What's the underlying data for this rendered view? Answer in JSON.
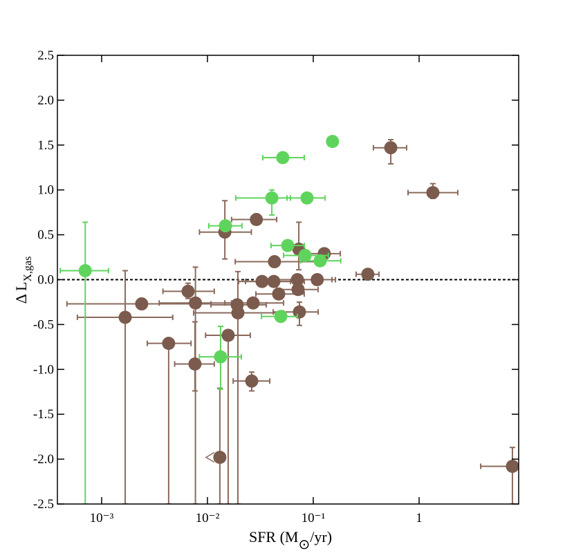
{
  "chart_data": {
    "type": "scatter",
    "xlabel_parts": [
      "SFR (M",
      "⊙",
      "/yr)"
    ],
    "ylabel": "Δ L",
    "ylabel_sub": "X,gas",
    "xscale": "log",
    "xlim": [
      0.000382,
      8.73
    ],
    "ylim": [
      -2.5,
      2.5
    ],
    "xticks": [
      {
        "value": 0.001,
        "label": "10⁻³"
      },
      {
        "value": 0.01,
        "label": "10⁻²"
      },
      {
        "value": 0.1,
        "label": "10⁻¹"
      },
      1
    ],
    "yticks": [
      2.5,
      {
        "value": 2,
        "label": "2.0"
      },
      1.5,
      {
        "value": 1,
        "label": "1.0"
      },
      0.5,
      {
        "value": 0,
        "label": "0.0"
      },
      -0.5,
      {
        "value": -1,
        "label": "-1.0"
      },
      -1.5,
      {
        "value": -2,
        "label": "-2.0"
      },
      -2.5
    ],
    "reference_line": 0,
    "series": [
      {
        "color": "#7b5b4d",
        "errcolor": "#8a6a5c",
        "x": [
          0.00167,
          0.00239,
          0.0043,
          0.00656,
          0.00762,
          0.0077,
          0.0131,
          0.0146,
          0.0157,
          0.0191,
          0.0194,
          0.027,
          0.0262,
          0.029,
          0.0328,
          0.043,
          0.0424,
          0.0471,
          0.073,
          0.0708,
          0.0718,
          0.074,
          0.109,
          0.127,
          0.328,
          0.54,
          1.35,
          7.62
        ],
        "values": [
          -0.42,
          -0.27,
          -0.71,
          -0.13,
          -0.94,
          -0.26,
          -1.98,
          0.53,
          -0.62,
          -0.28,
          -0.37,
          -0.26,
          -1.13,
          0.67,
          -0.02,
          0.2,
          -0.02,
          -0.16,
          0.34,
          0,
          -0.11,
          -0.36,
          0,
          0.29,
          0.06,
          1.47,
          0.97,
          -2.08
        ],
        "xmin": [
          0.00059,
          0.00047,
          0.0027,
          0.0038,
          0.0049,
          0.0035,
          null,
          0.0084,
          0.0096,
          0.0108,
          0.0074,
          0.0146,
          0.0175,
          0.0169,
          0.0197,
          0.0183,
          0.0229,
          0.0287,
          null,
          0.0418,
          0.0451,
          0.0418,
          0.0708,
          0.0822,
          0.254,
          0.37,
          0.786,
          3.82
        ],
        "xmax": [
          0.0047,
          0.0108,
          0.007,
          0.0116,
          0.0116,
          0.0169,
          null,
          0.026,
          0.0254,
          0.036,
          0.0524,
          0.0524,
          0.0388,
          0.0451,
          0.0609,
          0.111,
          0.0822,
          0.0822,
          null,
          0.15,
          0.111,
          0.111,
          0.162,
          0.18,
          0.418,
          0.762,
          2.32,
          8.73
        ],
        "ymin": [
          -2.5,
          null,
          -2.5,
          -0.21,
          -1.24,
          -2.5,
          -2.5,
          0.23,
          -2.5,
          null,
          -2.5,
          null,
          -1.24,
          null,
          null,
          null,
          null,
          null,
          0.11,
          null,
          null,
          -0.51,
          null,
          null,
          0,
          1.29,
          0.905,
          -2.5
        ],
        "ymax": [
          0.1,
          null,
          null,
          -0.04,
          -0.47,
          0.14,
          -1.21,
          0.88,
          null,
          null,
          0.09,
          null,
          -1.03,
          null,
          null,
          null,
          null,
          null,
          0.64,
          null,
          null,
          -0.25,
          null,
          null,
          0.11,
          1.56,
          1.07,
          -1.87
        ],
        "x_upper_limits": [
          6
        ]
      },
      {
        "color": "#5fd45c",
        "errcolor": "#5fd45c",
        "x": [
          0.0007,
          0.0148,
          0.0406,
          0.0873,
          0.0515,
          0.152,
          0.0573,
          0.0836,
          0.116,
          0.0493,
          0.0133
        ],
        "values": [
          0.1,
          0.6,
          0.91,
          0.91,
          1.36,
          1.54,
          0.38,
          0.27,
          0.21,
          -0.41,
          -0.86
        ],
        "xmin": [
          0.000406,
          0.0103,
          0.0185,
          0.0565,
          0.0333,
          null,
          0.0399,
          0.0524,
          0.0763,
          0.0324,
          0.0084
        ],
        "xmax": [
          0.00116,
          0.0212,
          0.0609,
          0.129,
          0.0822,
          null,
          0.0822,
          0.139,
          0.182,
          0.0708,
          0.0209
        ],
        "ymin": [
          -2.5,
          null,
          0.72,
          null,
          null,
          null,
          null,
          null,
          null,
          null,
          -1.22
        ],
        "ymax": [
          0.64,
          null,
          1.0,
          null,
          null,
          null,
          null,
          null,
          null,
          null,
          -0.52
        ]
      }
    ]
  }
}
